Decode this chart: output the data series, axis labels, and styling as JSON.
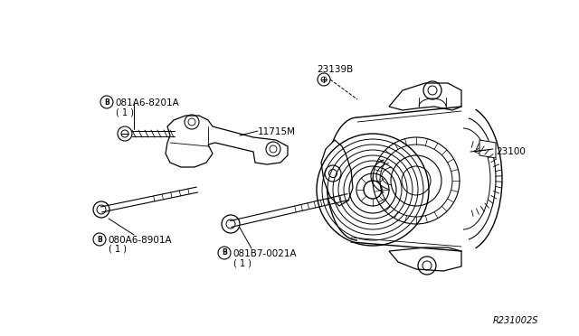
{
  "bg_color": "#ffffff",
  "line_color": "#000000",
  "text_color": "#000000",
  "ref_number": "R231002S",
  "label_081A6_8201A": "081A6-8201A",
  "label_081A6_qty": "( 1 )",
  "label_11715M": "11715M",
  "label_080A6_8901A": "080A6-8901A",
  "label_080A6_qty": "( 1 )",
  "label_081B7_0021A": "081B7-0021A",
  "label_081B7_qty": "( 1 )",
  "label_23139B": "23139B",
  "label_23100": "23100"
}
